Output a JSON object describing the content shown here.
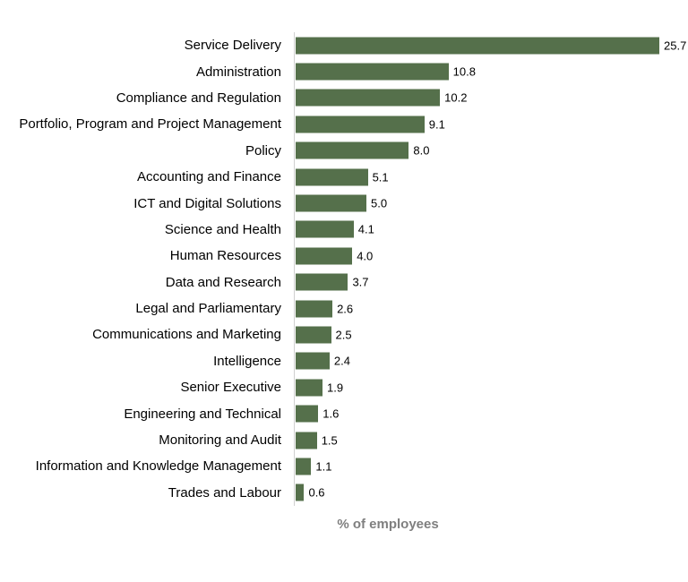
{
  "chart_data": {
    "type": "bar",
    "orientation": "horizontal",
    "title": "",
    "xlabel": "% of employees",
    "ylabel": "",
    "xlim": [
      0,
      26
    ],
    "grid": false,
    "legend_position": "none",
    "bar_color": "#55704b",
    "axis_line_color": "#d0d0d0",
    "category_label_color": "#000000",
    "value_label_color": "#000000",
    "xlabel_color": "#7f7f7f",
    "categories": [
      "Service Delivery",
      "Administration",
      "Compliance and Regulation",
      "Portfolio, Program and Project Management",
      "Policy",
      "Accounting and Finance",
      "ICT and Digital Solutions",
      "Science and Health",
      "Human Resources",
      "Data and Research",
      "Legal and Parliamentary",
      "Communications and Marketing",
      "Intelligence",
      "Senior Executive",
      "Engineering and Technical",
      "Monitoring and Audit",
      "Information and Knowledge Management",
      "Trades and Labour"
    ],
    "values": [
      25.7,
      10.8,
      10.2,
      9.1,
      8.0,
      5.1,
      5.0,
      4.1,
      4.0,
      3.7,
      2.6,
      2.5,
      2.4,
      1.9,
      1.6,
      1.5,
      1.1,
      0.6
    ],
    "value_labels": [
      "25.7",
      "10.8",
      "10.2",
      "9.1",
      "8.0",
      "5.1",
      "5.0",
      "4.1",
      "4.0",
      "3.7",
      "2.6",
      "2.5",
      "2.4",
      "1.9",
      "1.6",
      "1.5",
      "1.1",
      "0.6"
    ]
  }
}
